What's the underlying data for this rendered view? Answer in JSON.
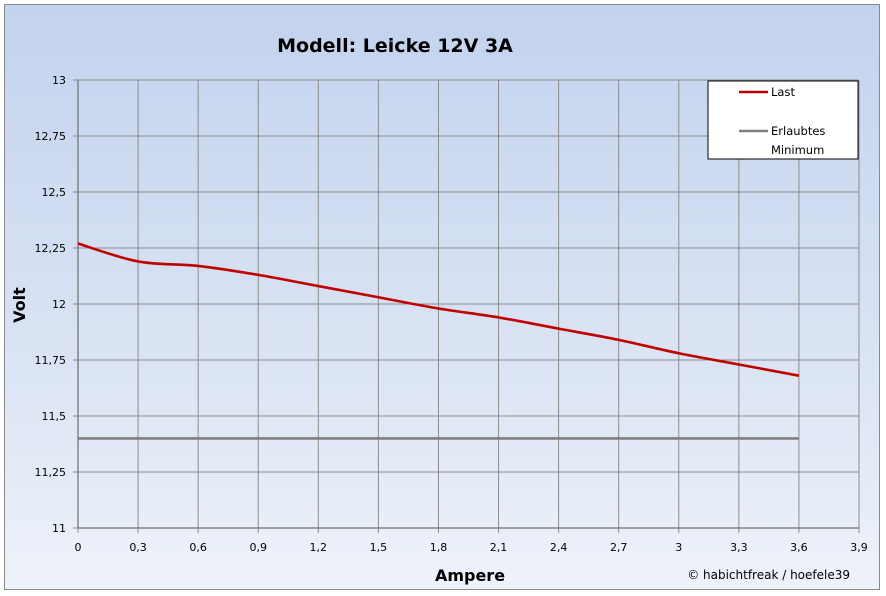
{
  "chart_data": {
    "type": "line",
    "title": "Modell:  Leicke  12V  3A",
    "xlabel": "Ampere",
    "ylabel": "Volt",
    "xlim": [
      0,
      3.9
    ],
    "ylim": [
      11,
      13
    ],
    "x_ticks": [
      "0",
      "0,3",
      "0,6",
      "0,9",
      "1,2",
      "1,5",
      "1,8",
      "2,1",
      "2,4",
      "2,7",
      "3",
      "3,3",
      "3,6",
      "3,9"
    ],
    "y_ticks": [
      "13",
      "12,75",
      "12,5",
      "12,25",
      "12",
      "11,75",
      "11,5",
      "11,25",
      "11"
    ],
    "grid": true,
    "legend_position": "top-right",
    "series": [
      {
        "name": "Last",
        "color": "#c00000",
        "x": [
          0,
          0.3,
          0.6,
          0.9,
          1.2,
          1.5,
          1.8,
          2.1,
          2.4,
          2.7,
          3.0,
          3.3,
          3.6
        ],
        "values": [
          12.27,
          12.19,
          12.17,
          12.13,
          12.08,
          12.03,
          11.98,
          11.94,
          11.89,
          11.84,
          11.78,
          11.73,
          11.68
        ]
      },
      {
        "name": "Erlaubtes Minimum",
        "legend_lines": [
          "Erlaubtes",
          "Minimum"
        ],
        "color": "#808080",
        "x": [
          0,
          3.6
        ],
        "values": [
          11.4,
          11.4
        ]
      }
    ],
    "credit": "© habichtfreak  / hoefele39"
  }
}
